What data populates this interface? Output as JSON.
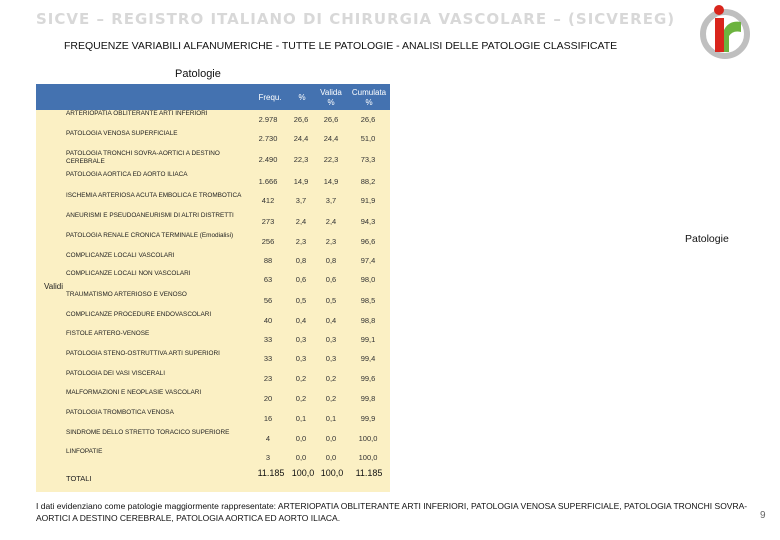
{
  "slide": {
    "banner": "SICVE – REGISTRO ITALIANO DI CHIRURGIA VASCOLARE – (SICVEREG)",
    "subtitle": "FREQUENZE VARIABILI ALFANUMERICHE - TUTTE LE PATOLOGIE - ANALISI DELLE PATOLOGIE CLASSIFICATE",
    "table_title": "Patologie",
    "legend_label": "Patologie",
    "side_label": "Validi",
    "footer": "I dati evidenziano come patologie maggiormente rappresentate: ARTERIOPATIA OBLITERANTE ARTI INFERIORI, PATOLOGIA VENOSA SUPERFICIALE, PATOLOGIA TRONCHI SOVRA-AORTICI A DESTINO CEREBRALE, PATOLOGIA AORTICA ED AORTO ILIACA.",
    "page_number": "9",
    "colors": {
      "header_band": "#4472b0",
      "table_fill": "#fbf0c4",
      "logo_red": "#d9251c",
      "logo_green": "#6cb33f"
    }
  },
  "headers": {
    "freq": "Frequ.",
    "pct": "%",
    "valid": "Valida %",
    "cum": "Cumulata %"
  },
  "rows": [
    {
      "label": "ARTERIOPATIA OBLITERANTE ARTI INFERIORI",
      "freq": "2.978",
      "pct": "26,6",
      "valid": "26,6",
      "cum": "26,6"
    },
    {
      "label": "PATOLOGIA VENOSA SUPERFICIALE",
      "freq": "2.730",
      "pct": "24,4",
      "valid": "24,4",
      "cum": "51,0"
    },
    {
      "label": "PATOLOGIA TRONCHI SOVRA-AORTICI A DESTINO CEREBRALE",
      "freq": "2.490",
      "pct": "22,3",
      "valid": "22,3",
      "cum": "73,3"
    },
    {
      "label": "PATOLOGIA AORTICA ED AORTO ILIACA",
      "freq": "1.666",
      "pct": "14,9",
      "valid": "14,9",
      "cum": "88,2"
    },
    {
      "label": "ISCHEMIA ARTERIOSA ACUTA EMBOLICA E TROMBOTICA",
      "freq": "412",
      "pct": "3,7",
      "valid": "3,7",
      "cum": "91,9"
    },
    {
      "label": "ANEURISMI E PSEUDOANEURISMI DI ALTRI DISTRETTI",
      "freq": "273",
      "pct": "2,4",
      "valid": "2,4",
      "cum": "94,3"
    },
    {
      "label": "PATOLOGIA RENALE CRONICA TERMINALE (Emodialisi)",
      "freq": "256",
      "pct": "2,3",
      "valid": "2,3",
      "cum": "96,6"
    },
    {
      "label": "COMPLICANZE LOCALI VASCOLARI",
      "freq": "88",
      "pct": "0,8",
      "valid": "0,8",
      "cum": "97,4"
    },
    {
      "label": "COMPLICANZE LOCALI NON VASCOLARI",
      "freq": "63",
      "pct": "0,6",
      "valid": "0,6",
      "cum": "98,0"
    },
    {
      "label": "TRAUMATISMO ARTERIOSO E VENOSO",
      "freq": "56",
      "pct": "0,5",
      "valid": "0,5",
      "cum": "98,5"
    },
    {
      "label": "COMPLICANZE PROCEDURE ENDOVASCOLARI",
      "freq": "40",
      "pct": "0,4",
      "valid": "0,4",
      "cum": "98,8"
    },
    {
      "label": "FISTOLE ARTERO-VENOSE",
      "freq": "33",
      "pct": "0,3",
      "valid": "0,3",
      "cum": "99,1"
    },
    {
      "label": "PATOLOGIA STENO-OSTRUTTIVA ARTI SUPERIORI",
      "freq": "33",
      "pct": "0,3",
      "valid": "0,3",
      "cum": "99,4"
    },
    {
      "label": "PATOLOGIA DEI VASI VISCERALI",
      "freq": "23",
      "pct": "0,2",
      "valid": "0,2",
      "cum": "99,6"
    },
    {
      "label": "MALFORMAZIONI E NEOPLASIE VASCOLARI",
      "freq": "20",
      "pct": "0,2",
      "valid": "0,2",
      "cum": "99,8"
    },
    {
      "label": "PATOLOGIA TROMBOTICA VENOSA",
      "freq": "16",
      "pct": "0,1",
      "valid": "0,1",
      "cum": "99,9"
    },
    {
      "label": "SINDROME DELLO STRETTO TORACICO SUPERIORE",
      "freq": "4",
      "pct": "0,0",
      "valid": "0,0",
      "cum": "100,0"
    },
    {
      "label": "LINFOPATIE",
      "freq": "3",
      "pct": "0,0",
      "valid": "0,0",
      "cum": "100,0"
    }
  ],
  "total": {
    "label": "TOTALI",
    "freq": "11.185",
    "pct": "100,0",
    "valid": "100,0",
    "cum": "11.185"
  }
}
